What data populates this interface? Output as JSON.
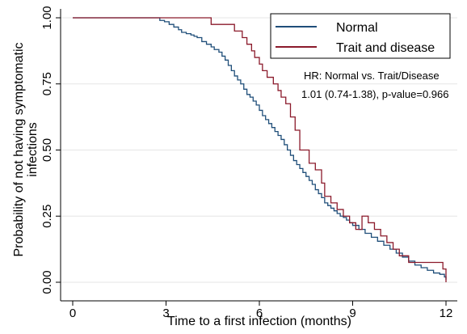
{
  "chart_data": {
    "type": "line",
    "step": true,
    "xlabel": "Time to a first infection (months)",
    "ylabel_lines": [
      "Probability of not having symptomatic",
      "infections"
    ],
    "xlim": [
      0,
      12
    ],
    "ylim": [
      0,
      1
    ],
    "x_ticks": [
      0,
      3,
      6,
      9,
      12
    ],
    "y_ticks": [
      0.0,
      0.25,
      0.5,
      0.75,
      1.0
    ],
    "x_tick_labels": [
      "0",
      "3",
      "6",
      "9",
      "12"
    ],
    "y_tick_labels": [
      "0.00",
      "0.25",
      "0.50",
      "0.75",
      "1.00"
    ],
    "grid": "horizontal",
    "legend_position": "top-right",
    "annotations": [
      "HR: Normal vs. Trait/Disease",
      "1.01 (0.74-1.38), p-value=0.966"
    ],
    "series": [
      {
        "name": "Normal",
        "color": "#1f4e79",
        "x": [
          0,
          2.8,
          2.95,
          3.1,
          3.25,
          3.4,
          3.5,
          3.65,
          3.8,
          3.9,
          4.0,
          4.15,
          4.3,
          4.45,
          4.55,
          4.7,
          4.8,
          4.9,
          5.0,
          5.1,
          5.2,
          5.3,
          5.4,
          5.5,
          5.6,
          5.7,
          5.8,
          5.9,
          6.0,
          6.1,
          6.2,
          6.3,
          6.4,
          6.5,
          6.6,
          6.7,
          6.8,
          6.9,
          7.0,
          7.1,
          7.2,
          7.3,
          7.4,
          7.5,
          7.6,
          7.7,
          7.8,
          7.9,
          8.0,
          8.1,
          8.2,
          8.3,
          8.4,
          8.5,
          8.6,
          8.7,
          8.8,
          8.9,
          9.0,
          9.2,
          9.4,
          9.6,
          9.8,
          10.0,
          10.2,
          10.4,
          10.6,
          10.8,
          11.0,
          11.2,
          11.4,
          11.6,
          11.8,
          11.95,
          12.0
        ],
        "y": [
          1.0,
          0.99,
          0.985,
          0.975,
          0.965,
          0.955,
          0.945,
          0.94,
          0.935,
          0.93,
          0.925,
          0.91,
          0.9,
          0.89,
          0.88,
          0.87,
          0.855,
          0.84,
          0.82,
          0.8,
          0.78,
          0.765,
          0.75,
          0.73,
          0.71,
          0.7,
          0.685,
          0.67,
          0.65,
          0.63,
          0.615,
          0.6,
          0.585,
          0.57,
          0.555,
          0.54,
          0.52,
          0.5,
          0.48,
          0.46,
          0.445,
          0.43,
          0.415,
          0.4,
          0.385,
          0.37,
          0.35,
          0.335,
          0.32,
          0.3,
          0.29,
          0.28,
          0.27,
          0.26,
          0.25,
          0.245,
          0.235,
          0.225,
          0.215,
          0.2,
          0.185,
          0.17,
          0.155,
          0.14,
          0.125,
          0.11,
          0.095,
          0.08,
          0.065,
          0.055,
          0.045,
          0.035,
          0.03,
          0.02,
          0.01
        ]
      },
      {
        "name": "Trait and disease",
        "color": "#8b1a2b",
        "x": [
          0,
          4.45,
          5.2,
          5.45,
          5.6,
          5.75,
          5.85,
          6.0,
          6.1,
          6.25,
          6.45,
          6.6,
          6.7,
          6.85,
          7.0,
          7.15,
          7.3,
          7.6,
          7.8,
          8.0,
          8.1,
          8.3,
          8.5,
          8.7,
          8.9,
          9.1,
          9.3,
          9.5,
          9.7,
          9.9,
          10.1,
          10.3,
          10.5,
          10.8,
          11.9,
          12.0
        ],
        "y": [
          1.0,
          0.975,
          0.95,
          0.925,
          0.9,
          0.875,
          0.85,
          0.825,
          0.8,
          0.775,
          0.75,
          0.725,
          0.7,
          0.675,
          0.625,
          0.575,
          0.5,
          0.45,
          0.425,
          0.375,
          0.325,
          0.3,
          0.275,
          0.25,
          0.225,
          0.2,
          0.25,
          0.225,
          0.2,
          0.175,
          0.15,
          0.125,
          0.1,
          0.075,
          0.05,
          0.0
        ]
      }
    ]
  }
}
